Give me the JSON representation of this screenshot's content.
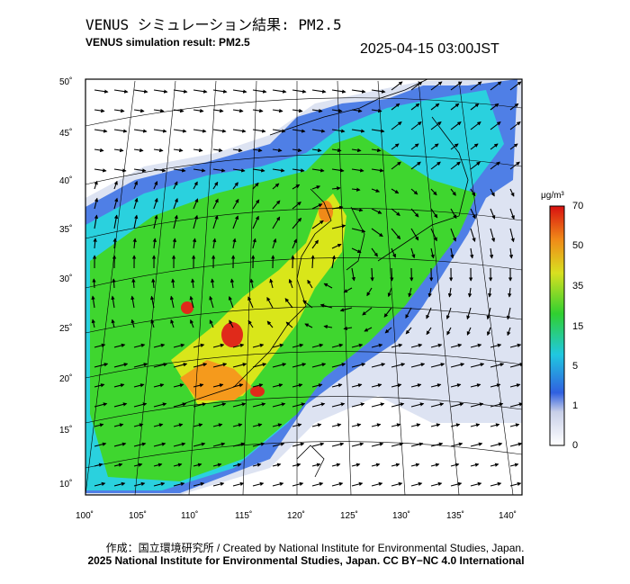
{
  "header": {
    "title_jp": "VENUS シミュレーション結果: PM2.5",
    "title_en": "VENUS simulation result: PM2.5",
    "timestamp": "2025-04-15 03:00JST"
  },
  "map": {
    "lat_labels": [
      "50˚",
      "45˚",
      "40˚",
      "35˚",
      "30˚",
      "25˚",
      "20˚",
      "15˚",
      "10˚"
    ],
    "lon_labels": [
      "100˚",
      "105˚",
      "110˚",
      "115˚",
      "120˚",
      "125˚",
      "130˚",
      "135˚",
      "140˚"
    ],
    "colors": {
      "ocean": "#ffffff",
      "low": "#dde3f2",
      "blue": "#4f7fe6",
      "cyan": "#2ad1de",
      "green": "#3fd62f",
      "yellow": "#d9e61a",
      "orange": "#f59a1c",
      "red": "#e02a1a"
    }
  },
  "colorbar": {
    "unit": "μg/m³",
    "ticks": [
      "70",
      "50",
      "35",
      "15",
      "5",
      "1",
      "0"
    ]
  },
  "footer": {
    "credit": "作成：国立環境研究所 / Created by National Institute for Environmental Studies, Japan.",
    "license": "2025 National Institute for Environmental Studies, Japan. CC BY−NC 4.0 International"
  }
}
